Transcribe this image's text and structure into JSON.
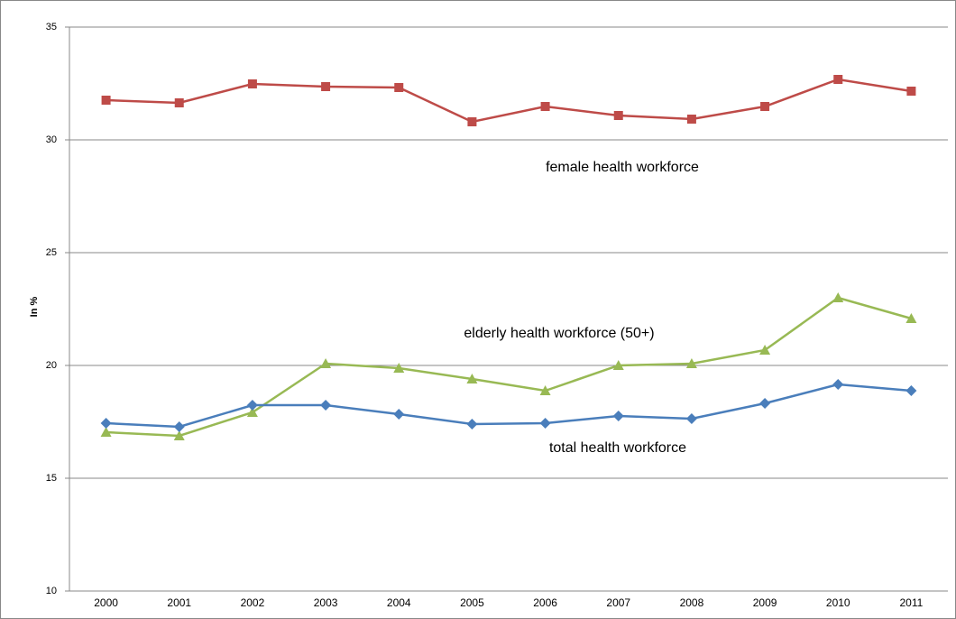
{
  "chart_data": {
    "type": "line",
    "y_label": "In %",
    "categories": [
      "2000",
      "2001",
      "2002",
      "2003",
      "2004",
      "2005",
      "2006",
      "2007",
      "2008",
      "2009",
      "2010",
      "2011"
    ],
    "series": [
      {
        "name": "female health workforce",
        "color": "#be4b48",
        "marker": "square",
        "values": [
          31.76,
          31.64,
          32.48,
          32.36,
          32.32,
          30.8,
          31.48,
          31.08,
          30.92,
          31.48,
          32.68,
          32.16
        ]
      },
      {
        "name": "elderly health workforce (50+)",
        "color": "#98b954",
        "marker": "triangle",
        "values": [
          17.04,
          16.88,
          17.92,
          20.08,
          19.88,
          19.4,
          18.88,
          20.0,
          20.08,
          20.68,
          23.0,
          22.08
        ]
      },
      {
        "name": "total health workforce",
        "color": "#4a7ebb",
        "marker": "diamond",
        "values": [
          17.44,
          17.28,
          18.24,
          18.24,
          17.84,
          17.4,
          17.44,
          17.76,
          17.64,
          18.32,
          19.16,
          18.88
        ]
      }
    ],
    "ylim": [
      10,
      35
    ],
    "yticks": [
      10,
      15,
      20,
      25,
      30,
      35
    ],
    "grid": true
  }
}
